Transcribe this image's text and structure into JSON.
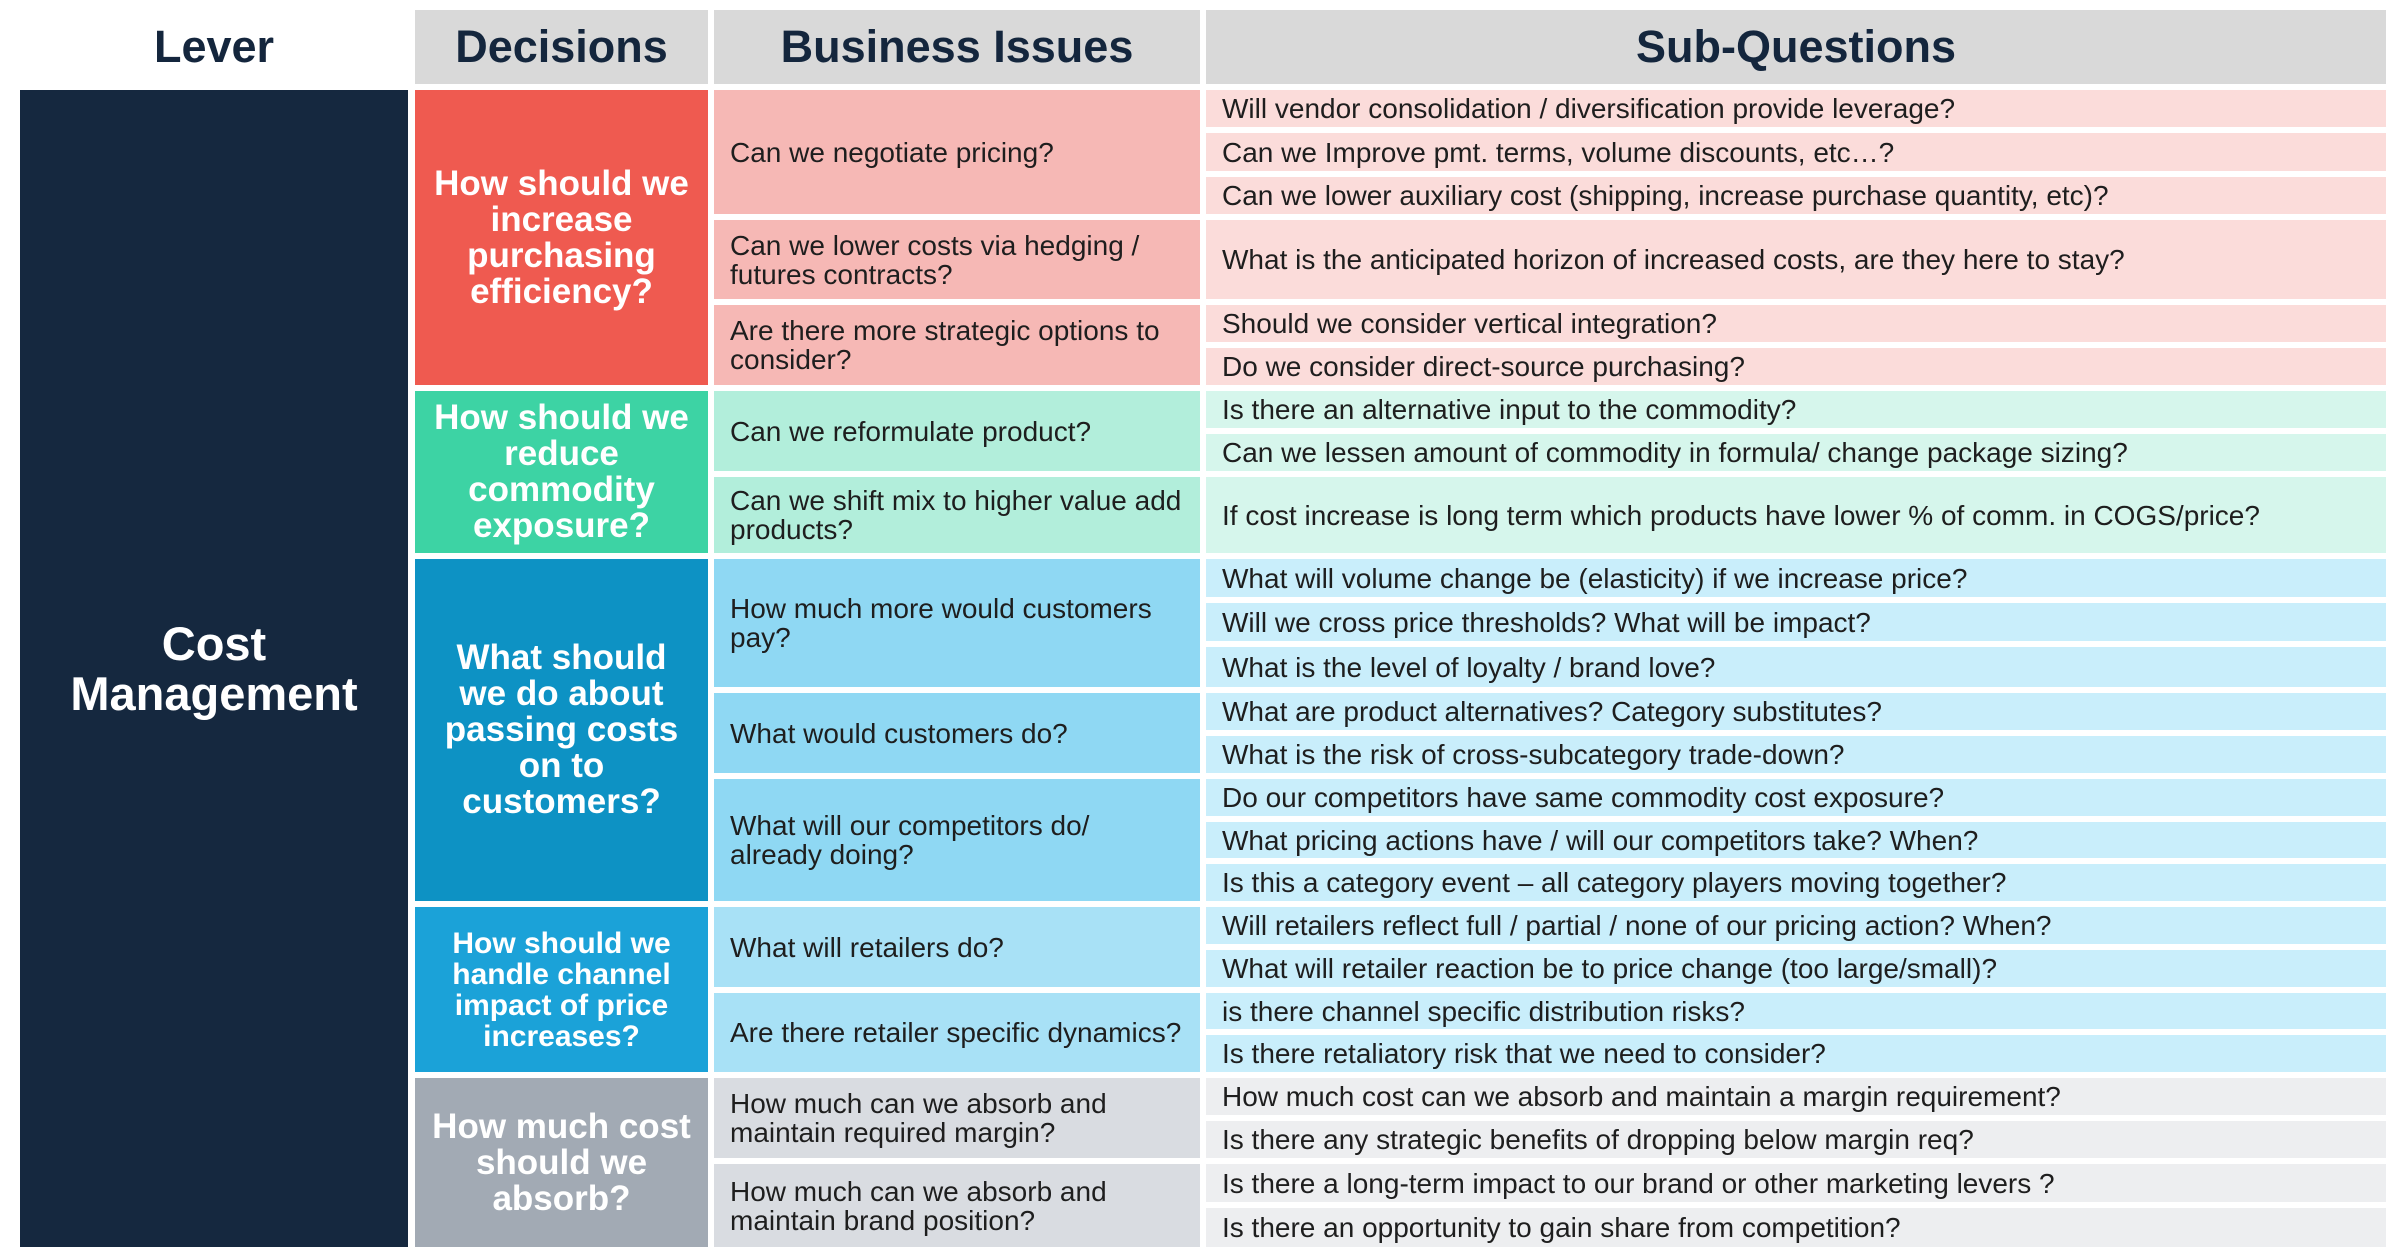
{
  "headers": {
    "lever": "Lever",
    "decisions": "Decisions",
    "business_issues": "Business Issues",
    "sub_questions": "Sub-Questions"
  },
  "lever": "Cost Management",
  "colors": {
    "lever_bg": "#15283f",
    "header_bg": "#d9d9d9",
    "header_text": "#14263d",
    "red_decision": "#ef5a50",
    "red_issue": "#f6b8b5",
    "red_sub": "#fbdcda",
    "green_decision": "#3dd3a4",
    "green_issue": "#b2eedb",
    "green_sub": "#d6f6ec",
    "blue_decision": "#0d92c4",
    "blue_issue": "#8fd8f3",
    "blue_sub": "#c9eefb",
    "lightblue_decision": "#1ba2d8",
    "lightblue_issue": "#a8e1f6",
    "lightblue_sub": "#c9eefb",
    "grey_decision": "#a2aab4",
    "grey_issue": "#d9dce1",
    "grey_sub": "#edeef0"
  },
  "decisions": [
    {
      "label": "How should we increase purchasing efficiency?",
      "issues": [
        {
          "label": "Can we negotiate pricing?",
          "subs": [
            "Will vendor consolidation / diversification provide leverage?",
            "Can we Improve pmt. terms, volume discounts, etc…?",
            "Can we lower auxiliary cost (shipping, increase purchase quantity, etc)?"
          ]
        },
        {
          "label": "Can we lower costs via hedging / futures contracts?",
          "subs": [
            "What is the anticipated horizon of increased costs, are they here to stay?"
          ]
        },
        {
          "label": "Are there more strategic options to consider?",
          "subs": [
            "Should we consider vertical integration?",
            "Do we consider direct-source purchasing?"
          ]
        }
      ]
    },
    {
      "label": "How should we reduce commodity exposure?",
      "issues": [
        {
          "label": "Can we reformulate product?",
          "subs": [
            "Is there an alternative input to the commodity?",
            "Can we lessen amount of commodity in formula/ change package sizing?"
          ]
        },
        {
          "label": "Can we shift mix to higher value add products?",
          "subs": [
            "If cost increase is long term which products have lower % of comm. in COGS/price?"
          ]
        }
      ]
    },
    {
      "label": "What should we do about passing costs on to customers?",
      "issues": [
        {
          "label": "How much more would customers pay?",
          "subs": [
            "What will volume change be (elasticity) if we increase price?",
            "Will we cross price thresholds? What will be impact?",
            "What is the level of loyalty / brand love?"
          ]
        },
        {
          "label": "What would customers do?",
          "subs": [
            "What are product alternatives? Category substitutes?",
            "What is the risk of cross-subcategory trade-down?"
          ]
        },
        {
          "label": "What will our competitors do/ already doing?",
          "subs": [
            "Do our competitors have same commodity cost exposure?",
            "What pricing actions have / will our competitors take? When?",
            "Is this a category event – all category players moving together?"
          ]
        }
      ]
    },
    {
      "label": "How should we handle channel impact of price increases?",
      "issues": [
        {
          "label": "What will retailers do?",
          "subs": [
            "Will retailers reflect full / partial / none of our pricing action? When?",
            "What will retailer reaction be to price change (too large/small)?"
          ]
        },
        {
          "label": "Are there retailer specific dynamics?",
          "subs": [
            "is there channel specific distribution risks?",
            "Is there retaliatory risk that we need to consider?"
          ]
        }
      ]
    },
    {
      "label": "How much cost should we absorb?",
      "issues": [
        {
          "label": "How much can we absorb and maintain required margin?",
          "subs": [
            "How much cost can we absorb and maintain a margin requirement?",
            "Is there any strategic benefits of dropping below margin req?"
          ]
        },
        {
          "label": "How much can we absorb and maintain brand position?",
          "subs": [
            "Is there a long-term impact to our brand or other marketing levers ?",
            "Is there an opportunity to gain share from competition?"
          ]
        }
      ]
    }
  ]
}
